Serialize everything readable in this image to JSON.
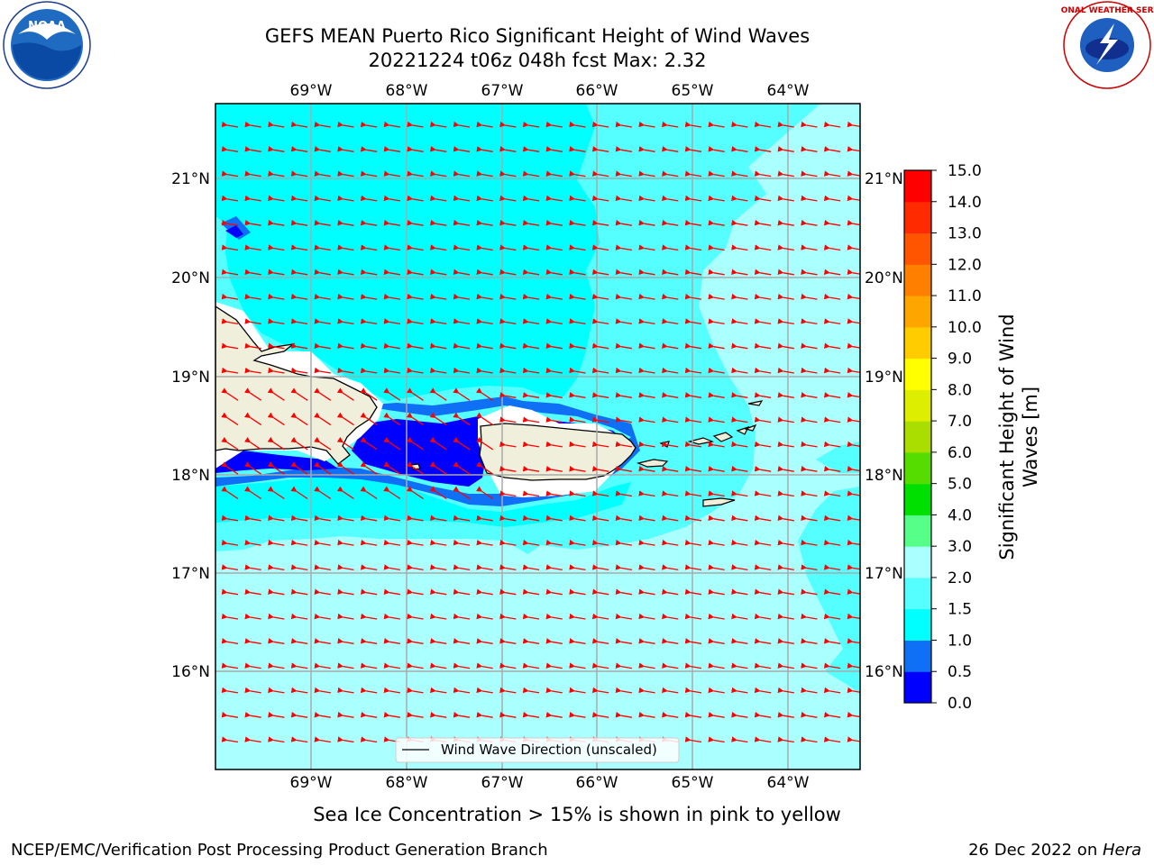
{
  "title": {
    "line1": "GEFS MEAN Puerto Rico Significant Height of Wind Waves",
    "line2": "20221224 t06z 048h fcst   Max: 2.32"
  },
  "axes": {
    "lon_labels": [
      "69°W",
      "68°W",
      "67°W",
      "66°W",
      "65°W",
      "64°W"
    ],
    "lat_labels": [
      "21°N",
      "20°N",
      "19°N",
      "18°N",
      "17°N",
      "16°N"
    ]
  },
  "legend": {
    "label": "Wind Wave Direction (unscaled)"
  },
  "colorbar": {
    "label_line1": "Significant Height of Wind",
    "label_line2": "Waves [m]",
    "ticks": [
      "0.0",
      "0.5",
      "1.0",
      "1.5",
      "2.0",
      "3.0",
      "4.0",
      "5.0",
      "6.0",
      "7.0",
      "8.0",
      "9.0",
      "10.0",
      "11.0",
      "12.0",
      "13.0",
      "14.0",
      "15.0"
    ],
    "colors": [
      "#0000ff",
      "#0f6ff5",
      "#00ffff",
      "#55ffff",
      "#aaffff",
      "#55ff88",
      "#00e000",
      "#55dd00",
      "#aadd00",
      "#ddee00",
      "#ffff00",
      "#ffcc00",
      "#ffa500",
      "#ff8000",
      "#ff5500",
      "#ff2a00",
      "#ff0000"
    ]
  },
  "footnote": "Sea Ice Concentration > 15% is shown in pink to yellow",
  "footer": {
    "left": "NCEP/EMC/Verification Post Processing Product Generation Branch",
    "right_date": "26 Dec 2022 on ",
    "right_host": "Hera"
  },
  "logos": {
    "noaa_text": "NOAA",
    "nws_text": "NATIONAL WEATHER SERVICE"
  },
  "map_data": {
    "lon_range": [
      -69.0,
      -63.25
    ],
    "lat_range": [
      15.0,
      21.75
    ],
    "max_value": 2.32,
    "arrow_color": "#ff0000",
    "arrow_direction": "westward"
  }
}
